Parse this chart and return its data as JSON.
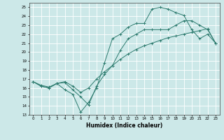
{
  "xlabel": "Humidex (Indice chaleur)",
  "bg_color": "#cce8e8",
  "grid_color": "#ffffff",
  "line_color": "#2d7b6e",
  "xlim": [
    -0.5,
    23.5
  ],
  "ylim": [
    13,
    25.5
  ],
  "xticks": [
    0,
    1,
    2,
    3,
    4,
    5,
    6,
    7,
    8,
    9,
    10,
    11,
    12,
    13,
    14,
    15,
    16,
    17,
    18,
    19,
    20,
    21,
    22,
    23
  ],
  "yticks": [
    13,
    14,
    15,
    16,
    17,
    18,
    19,
    20,
    21,
    22,
    23,
    24,
    25
  ],
  "series": [
    {
      "x": [
        0,
        1,
        2,
        3,
        4,
        5,
        6,
        7,
        8,
        9,
        10,
        11,
        12,
        13,
        14,
        15,
        16,
        17,
        18,
        19,
        20,
        21,
        22,
        23
      ],
      "y": [
        16.7,
        16.2,
        16.0,
        16.5,
        15.8,
        15.3,
        13.3,
        14.4,
        16.0,
        18.8,
        21.5,
        22.0,
        22.8,
        23.2,
        23.2,
        24.8,
        25.0,
        24.8,
        24.4,
        24.1,
        22.5,
        21.5,
        22.0,
        21.0
      ]
    },
    {
      "x": [
        0,
        1,
        2,
        3,
        4,
        5,
        6,
        7,
        8,
        9,
        10,
        11,
        12,
        13,
        14,
        15,
        16,
        17,
        18,
        19,
        20,
        21,
        22,
        23
      ],
      "y": [
        16.7,
        16.2,
        16.0,
        16.5,
        16.6,
        15.8,
        15.0,
        14.1,
        16.2,
        17.5,
        18.5,
        20.2,
        21.5,
        22.0,
        22.5,
        22.5,
        22.5,
        22.5,
        23.0,
        23.5,
        23.5,
        23.0,
        22.5,
        21.0
      ]
    },
    {
      "x": [
        0,
        1,
        2,
        3,
        4,
        5,
        6,
        7,
        8,
        9,
        10,
        11,
        12,
        13,
        14,
        15,
        16,
        17,
        18,
        19,
        20,
        21,
        22,
        23
      ],
      "y": [
        16.7,
        16.3,
        16.1,
        16.5,
        16.7,
        16.2,
        15.5,
        16.0,
        17.0,
        17.8,
        18.5,
        19.2,
        19.8,
        20.3,
        20.7,
        21.0,
        21.3,
        21.6,
        21.8,
        22.0,
        22.2,
        22.4,
        22.6,
        21.0
      ]
    }
  ]
}
